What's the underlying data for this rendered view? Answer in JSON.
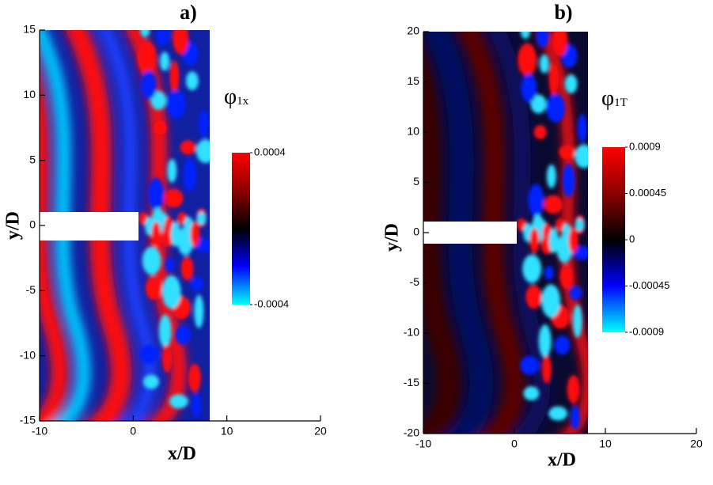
{
  "chart_data": [
    {
      "type": "contour",
      "title": "a)",
      "xlabel": "x/D",
      "ylabel": "y/D",
      "xlim": [
        -10,
        20
      ],
      "xticks": [
        -10,
        0,
        10,
        20
      ],
      "ylim": [
        -15,
        15
      ],
      "yticks": [
        -15,
        -10,
        -5,
        0,
        5,
        10,
        15
      ],
      "colorbar": {
        "label": "φ",
        "label_sub": "1x",
        "clim": [
          -0.0004,
          0.0004
        ],
        "ticks": [
          0.0004,
          -0.0004
        ],
        "colors": [
          "#00ffff",
          "#0000ff",
          "#000000",
          "#8b0000",
          "#ff0000"
        ]
      }
    },
    {
      "type": "contour",
      "title": "b)",
      "xlabel": "x/D",
      "ylabel": "y/D",
      "xlim": [
        -10,
        20
      ],
      "xticks": [
        -10,
        0,
        10,
        20
      ],
      "ylim": [
        -20,
        20
      ],
      "yticks": [
        -20,
        -15,
        -10,
        -5,
        0,
        5,
        10,
        15,
        20
      ],
      "colorbar": {
        "label": "φ",
        "label_sub": "1T",
        "clim": [
          -0.0009,
          0.0009
        ],
        "ticks": [
          0.0009,
          0.00045,
          0,
          -0.00045,
          -0.0009
        ],
        "colors": [
          "#00ffff",
          "#0000ff",
          "#000000",
          "#8b0000",
          "#ff0000"
        ]
      }
    }
  ]
}
